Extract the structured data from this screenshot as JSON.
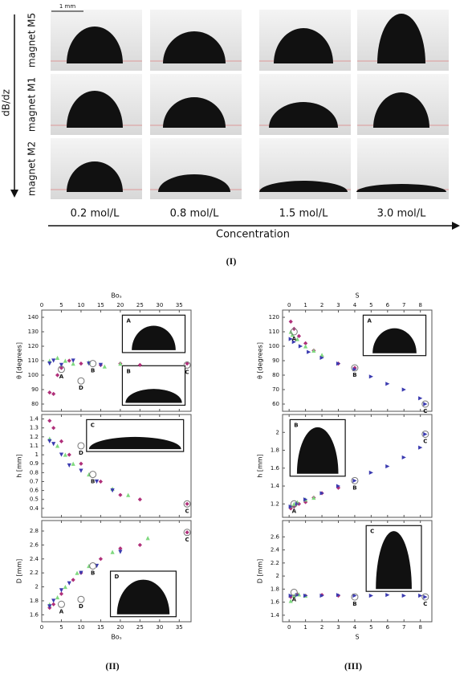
{
  "panel_I": {
    "scale_bar": "1 mm",
    "rows": [
      "magnet M5",
      "magnet M1",
      "magnet M2"
    ],
    "gradient_label": "dB/dz",
    "concentrations": [
      "0.2 mol/L",
      "0.8 mol/L",
      "1.5 mol/L",
      "3.0 mol/L"
    ],
    "x_label": "Concentration",
    "caption": "(I)"
  },
  "captions": [
    "(II)",
    "(III)"
  ],
  "chart_data": [
    {
      "type": "scatter",
      "x_label": "Boₛ",
      "y_label": "θ [degrees]",
      "xlim": [
        0,
        38
      ],
      "xticks": [
        0,
        5,
        10,
        15,
        20,
        25,
        30,
        35
      ],
      "ylim": [
        75,
        145
      ],
      "yticks": [
        80,
        90,
        100,
        110,
        120,
        130,
        140
      ],
      "series": [
        {
          "color": "#b0307a",
          "marker": "diamond",
          "x": [
            2,
            3,
            4,
            5,
            7,
            10,
            15,
            20,
            25,
            37
          ],
          "values": [
            88,
            87,
            100,
            105,
            110,
            108,
            107,
            108,
            107,
            108
          ]
        },
        {
          "color": "#7fd97f",
          "marker": "triangle",
          "x": [
            2,
            4,
            6,
            8,
            12,
            16,
            20
          ],
          "values": [
            110,
            112,
            110,
            108,
            109,
            106,
            108
          ]
        },
        {
          "color": "#3b3bb0",
          "marker": "triangle-down",
          "x": [
            2,
            3,
            5,
            8,
            12,
            15
          ],
          "values": [
            108,
            110,
            107,
            110,
            108,
            107
          ]
        }
      ],
      "annotations": [
        {
          "text": "A",
          "x": 5,
          "y": 104
        },
        {
          "text": "B",
          "x": 13,
          "y": 108
        },
        {
          "text": "C",
          "x": 37,
          "y": 107
        },
        {
          "text": "D",
          "x": 10,
          "y": 96
        }
      ],
      "insets": [
        "A",
        "B"
      ]
    },
    {
      "type": "scatter",
      "y_label": "h [mm]",
      "xlim": [
        0,
        38
      ],
      "xticks": [
        0,
        5,
        10,
        15,
        20,
        25,
        30,
        35
      ],
      "ylim": [
        0.3,
        1.45
      ],
      "yticks": [
        0.4,
        0.5,
        0.6,
        0.7,
        0.8,
        0.9,
        1.0,
        1.1,
        1.2,
        1.3,
        1.4
      ],
      "series": [
        {
          "color": "#b0307a",
          "marker": "diamond",
          "x": [
            2,
            3,
            5,
            7,
            10,
            15,
            20,
            25,
            37
          ],
          "values": [
            1.38,
            1.3,
            1.15,
            1.0,
            0.9,
            0.7,
            0.55,
            0.5,
            0.45
          ]
        },
        {
          "color": "#7fd97f",
          "marker": "triangle",
          "x": [
            2,
            4,
            6,
            8,
            12,
            18,
            22
          ],
          "values": [
            1.18,
            1.1,
            1.0,
            0.9,
            0.78,
            0.62,
            0.55
          ]
        },
        {
          "color": "#3b3bb0",
          "marker": "triangle-down",
          "x": [
            2,
            3,
            5,
            7,
            10,
            14,
            18
          ],
          "values": [
            1.15,
            1.12,
            1.0,
            0.88,
            0.82,
            0.7,
            0.6
          ]
        }
      ],
      "annotations": [
        {
          "text": "D",
          "x": 10,
          "y": 1.1
        },
        {
          "text": "B",
          "x": 13,
          "y": 0.78
        },
        {
          "text": "C",
          "x": 37,
          "y": 0.45
        }
      ],
      "insets": [
        "C"
      ]
    },
    {
      "type": "scatter",
      "x_label": "Boₛ",
      "y_label": "D [mm]",
      "xlim": [
        0,
        38
      ],
      "xticks": [
        0,
        5,
        10,
        15,
        20,
        25,
        30,
        35
      ],
      "ylim": [
        1.5,
        2.95
      ],
      "yticks": [
        1.6,
        1.8,
        2.0,
        2.2,
        2.4,
        2.6,
        2.8
      ],
      "series": [
        {
          "color": "#b0307a",
          "marker": "diamond",
          "x": [
            2,
            3,
            5,
            8,
            10,
            15,
            20,
            25,
            37
          ],
          "values": [
            1.7,
            1.75,
            1.9,
            2.1,
            2.2,
            2.4,
            2.55,
            2.6,
            2.78
          ]
        },
        {
          "color": "#7fd97f",
          "marker": "triangle",
          "x": [
            2,
            4,
            6,
            9,
            12,
            18,
            27
          ],
          "values": [
            1.75,
            1.85,
            2.0,
            2.2,
            2.3,
            2.5,
            2.7
          ]
        },
        {
          "color": "#3b3bb0",
          "marker": "triangle-down",
          "x": [
            2,
            3,
            5,
            7,
            10,
            14,
            20
          ],
          "values": [
            1.72,
            1.8,
            1.95,
            2.05,
            2.2,
            2.3,
            2.5
          ]
        }
      ],
      "annotations": [
        {
          "text": "A",
          "x": 5,
          "y": 1.75
        },
        {
          "text": "B",
          "x": 13,
          "y": 2.3
        },
        {
          "text": "C",
          "x": 37,
          "y": 2.78
        },
        {
          "text": "D",
          "x": 10,
          "y": 1.82
        }
      ],
      "insets": [
        "D"
      ]
    },
    {
      "type": "scatter",
      "x_label": "S",
      "y_label": "θ [degrees]",
      "xlim": [
        -0.4,
        8.7
      ],
      "xticks": [
        0,
        1,
        2,
        3,
        4,
        5,
        6,
        7,
        8
      ],
      "ylim": [
        55,
        125
      ],
      "yticks": [
        60,
        70,
        80,
        90,
        100,
        110,
        120
      ],
      "series": [
        {
          "color": "#b0307a",
          "marker": "diamond",
          "x": [
            0.1,
            0.3,
            0.6,
            1,
            1.5,
            2,
            3,
            4
          ],
          "values": [
            117,
            112,
            107,
            102,
            97,
            93,
            88,
            85
          ]
        },
        {
          "color": "#7fd97f",
          "marker": "triangle",
          "x": [
            0.1,
            0.2,
            0.5,
            1,
            1.5,
            2
          ],
          "values": [
            110,
            108,
            105,
            100,
            97,
            94
          ]
        },
        {
          "color": "#3b3bb0",
          "marker": "triangle-right",
          "x": [
            0.1,
            0.3,
            0.7,
            1.2,
            2,
            3,
            4,
            5,
            6,
            7,
            8,
            8.3
          ],
          "values": [
            105,
            103,
            100,
            96,
            92,
            88,
            84,
            79,
            74,
            70,
            64,
            60
          ]
        }
      ],
      "annotations": [
        {
          "text": "A",
          "x": 0.3,
          "y": 110
        },
        {
          "text": "B",
          "x": 4,
          "y": 85
        },
        {
          "text": "C",
          "x": 8.3,
          "y": 60
        }
      ],
      "insets": [
        "A"
      ]
    },
    {
      "type": "scatter",
      "y_label": "h [mm]",
      "xlim": [
        -0.4,
        8.7
      ],
      "xticks": [
        0,
        1,
        2,
        3,
        4,
        5,
        6,
        7,
        8
      ],
      "ylim": [
        1.05,
        2.2
      ],
      "yticks": [
        1.2,
        1.4,
        1.6,
        1.8,
        2.0
      ],
      "series": [
        {
          "color": "#b0307a",
          "marker": "diamond",
          "x": [
            0.1,
            0.3,
            0.6,
            1,
            1.5,
            2,
            3
          ],
          "values": [
            1.15,
            1.17,
            1.2,
            1.22,
            1.27,
            1.32,
            1.38
          ]
        },
        {
          "color": "#7fd97f",
          "marker": "triangle",
          "x": [
            0.1,
            0.3,
            0.5,
            1,
            1.5
          ],
          "values": [
            1.18,
            1.2,
            1.22,
            1.25,
            1.27
          ]
        },
        {
          "color": "#3b3bb0",
          "marker": "triangle-right",
          "x": [
            0.1,
            0.5,
            1,
            2,
            3,
            4,
            5,
            6,
            7,
            8,
            8.3
          ],
          "values": [
            1.17,
            1.2,
            1.25,
            1.32,
            1.4,
            1.46,
            1.55,
            1.62,
            1.72,
            1.83,
            1.98
          ]
        }
      ],
      "annotations": [
        {
          "text": "A",
          "x": 0.3,
          "y": 1.2
        },
        {
          "text": "B",
          "x": 4,
          "y": 1.46
        },
        {
          "text": "C",
          "x": 8.3,
          "y": 1.98
        }
      ],
      "insets": [
        "B"
      ]
    },
    {
      "type": "scatter",
      "x_label": "S",
      "y_label": "D [mm]",
      "xlim": [
        -0.4,
        8.7
      ],
      "xticks": [
        0,
        1,
        2,
        3,
        4,
        5,
        6,
        7,
        8
      ],
      "ylim": [
        1.3,
        2.85
      ],
      "yticks": [
        1.4,
        1.6,
        1.8,
        2.0,
        2.2,
        2.4,
        2.6
      ],
      "series": [
        {
          "color": "#b0307a",
          "marker": "diamond",
          "x": [
            0.1,
            0.5,
            1,
            2,
            3
          ],
          "values": [
            1.68,
            1.72,
            1.7,
            1.71,
            1.7
          ]
        },
        {
          "color": "#7fd97f",
          "marker": "triangle",
          "x": [
            0.1,
            0.3,
            0.6,
            1
          ],
          "values": [
            1.62,
            1.7,
            1.72,
            1.7
          ]
        },
        {
          "color": "#3b3bb0",
          "marker": "triangle-right",
          "x": [
            0.1,
            0.5,
            1,
            2,
            3,
            4,
            5,
            6,
            7,
            8,
            8.3
          ],
          "values": [
            1.7,
            1.71,
            1.7,
            1.7,
            1.71,
            1.7,
            1.7,
            1.71,
            1.7,
            1.7,
            1.68
          ]
        }
      ],
      "annotations": [
        {
          "text": "A",
          "x": 0.3,
          "y": 1.75
        },
        {
          "text": "B",
          "x": 4,
          "y": 1.68
        },
        {
          "text": "C",
          "x": 8.3,
          "y": 1.68
        }
      ],
      "insets": [
        "C"
      ]
    }
  ]
}
